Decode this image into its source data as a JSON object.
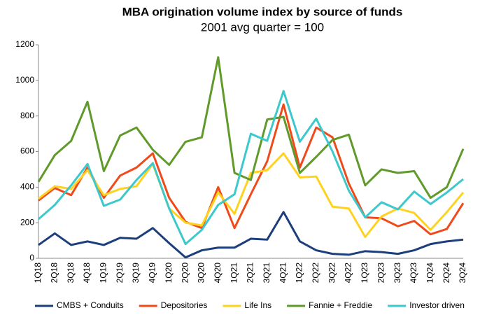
{
  "chart_data": {
    "type": "line",
    "title": "MBA origination volume index by source of funds",
    "subtitle": "2001 avg quarter = 100",
    "categories": [
      "1Q18",
      "2Q18",
      "3Q18",
      "4Q18",
      "1Q19",
      "2Q19",
      "3Q19",
      "4Q19",
      "1Q20",
      "2Q20",
      "3Q20",
      "4Q20",
      "1Q21",
      "2Q21",
      "3Q21",
      "4Q21",
      "1Q22",
      "2Q22",
      "3Q22",
      "4Q22",
      "1Q23",
      "2Q23",
      "3Q23",
      "4Q23",
      "1Q24",
      "2Q24",
      "3Q24"
    ],
    "series": [
      {
        "name": "CMBS + Conduits",
        "color": "#1c3f7c",
        "values": [
          75,
          140,
          75,
          95,
          75,
          115,
          110,
          170,
          85,
          5,
          45,
          60,
          60,
          110,
          105,
          260,
          95,
          45,
          25,
          20,
          40,
          35,
          25,
          45,
          80,
          95,
          105
        ]
      },
      {
        "name": "Depositories",
        "color": "#f04a1b",
        "values": [
          325,
          395,
          355,
          510,
          340,
          465,
          510,
          590,
          340,
          205,
          170,
          400,
          170,
          360,
          545,
          865,
          510,
          735,
          680,
          420,
          230,
          225,
          180,
          210,
          135,
          165,
          310
        ]
      },
      {
        "name": "Life Ins",
        "color": "#ffd21f",
        "values": [
          335,
          405,
          390,
          495,
          355,
          390,
          405,
          530,
          280,
          200,
          185,
          370,
          250,
          480,
          495,
          590,
          455,
          460,
          290,
          280,
          120,
          235,
          280,
          255,
          160,
          260,
          370
        ]
      },
      {
        "name": "Fannie + Freddie",
        "color": "#5f9a2a",
        "values": [
          430,
          580,
          660,
          880,
          490,
          690,
          735,
          610,
          525,
          655,
          680,
          1130,
          480,
          440,
          780,
          795,
          480,
          570,
          665,
          695,
          410,
          500,
          480,
          490,
          340,
          400,
          615
        ]
      },
      {
        "name": "Investor driven",
        "color": "#3cc8cc",
        "values": [
          220,
          300,
          410,
          530,
          295,
          330,
          440,
          535,
          280,
          80,
          160,
          300,
          360,
          700,
          660,
          940,
          655,
          785,
          600,
          380,
          230,
          315,
          275,
          375,
          305,
          370,
          445
        ]
      }
    ],
    "ylim": [
      0,
      1200
    ],
    "yticks": [
      0,
      200,
      400,
      600,
      800,
      1000,
      1200
    ],
    "grid": false,
    "legend": "bottom"
  }
}
